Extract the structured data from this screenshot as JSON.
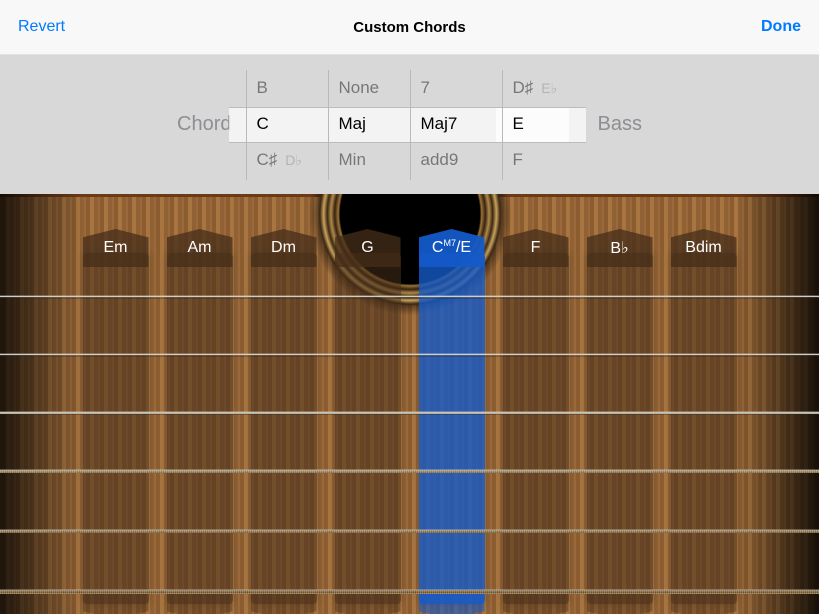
{
  "header": {
    "revert": "Revert",
    "title": "Custom Chords",
    "done": "Done"
  },
  "picker": {
    "chord_label": "Chord",
    "bass_label": "Bass",
    "col_root": {
      "above": "B",
      "selected": "C",
      "below": "C♯",
      "below_enh": "D♭"
    },
    "col_quality": {
      "above": "None",
      "selected": "Maj",
      "below": "Min"
    },
    "col_ext": {
      "above": "7",
      "selected": "Maj7",
      "below": "add9"
    },
    "col_bass": {
      "above": "D♯",
      "above_enh": "E♭",
      "selected": "E",
      "below": "F"
    }
  },
  "chords": [
    {
      "label": "Em",
      "active": false
    },
    {
      "label": "Am",
      "active": false
    },
    {
      "label": "Dm",
      "active": false
    },
    {
      "label": "G",
      "active": false
    },
    {
      "label": "C",
      "sup": "M7",
      "suffix": "/E",
      "active": true
    },
    {
      "label": "F",
      "active": false
    },
    {
      "label": "B♭",
      "active": false
    },
    {
      "label": "Bdim",
      "active": false
    }
  ],
  "colors": {
    "accent": "#007aff",
    "active_strip": "#1a5ac8"
  }
}
